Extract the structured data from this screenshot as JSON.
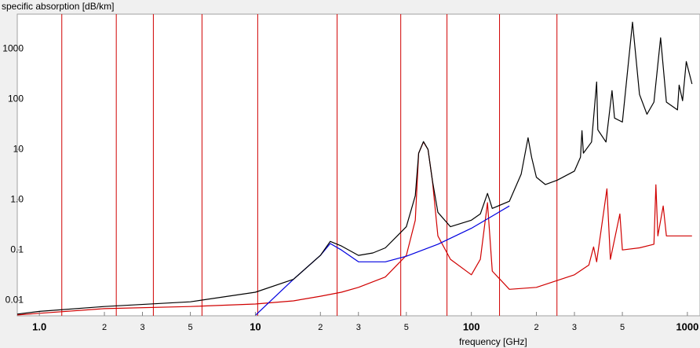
{
  "chart_data": {
    "type": "line",
    "y_label": "specific absorption [dB/km]",
    "x_label": "frequency [GHz]",
    "log_x": true,
    "log_y": true,
    "xlim": [
      0.79,
      1144
    ],
    "ylim": [
      0.0049,
      4900
    ],
    "xticks": [
      {
        "value": 1,
        "label": "1.0"
      },
      2,
      3,
      5,
      10,
      {
        "value": 20,
        "label": "2"
      },
      {
        "value": 30,
        "label": "3"
      },
      {
        "value": 50,
        "label": "5"
      },
      100,
      {
        "value": 200,
        "label": "2"
      },
      {
        "value": 300,
        "label": "3"
      },
      {
        "value": 500,
        "label": "5"
      },
      1000
    ],
    "yticks": [
      0.01,
      0.1,
      {
        "value": 1,
        "label": "1.0"
      },
      10,
      100,
      1000
    ],
    "vlines": [
      1.27,
      2.27,
      3.37,
      5.66,
      10.25,
      23.9,
      47.1,
      77.1,
      135,
      249
    ],
    "vline_color": "#d00000",
    "series": [
      {
        "color": "#000000",
        "x": [
          0.79,
          1,
          2,
          5,
          10,
          15,
          20,
          22.2,
          25,
          30,
          35,
          40,
          50,
          55,
          57,
          60,
          63,
          66,
          70,
          80,
          100,
          110,
          118.75,
          125,
          150,
          170,
          183,
          190,
          200,
          220,
          250,
          300,
          320,
          325,
          330,
          360,
          380,
          385,
          420,
          448,
          460,
          500,
          557,
          600,
          650,
          700,
          752,
          800,
          900,
          916,
          950,
          988,
          1050
        ],
        "values": [
          0.0053,
          0.006,
          0.0075,
          0.0093,
          0.0144,
          0.026,
          0.078,
          0.148,
          0.12,
          0.078,
          0.087,
          0.11,
          0.29,
          1.2,
          8.4,
          14.3,
          10,
          2.4,
          0.56,
          0.29,
          0.39,
          0.52,
          1.33,
          0.67,
          0.93,
          3.2,
          17,
          7,
          2.8,
          2.0,
          2.45,
          3.7,
          7,
          23.6,
          8.4,
          14,
          220,
          24.6,
          14,
          148,
          42,
          35,
          3400,
          124,
          50,
          87,
          1660,
          87,
          61,
          190,
          93,
          560,
          200
        ]
      },
      {
        "color": "#0000e0",
        "x": [
          10,
          15,
          20,
          22.2,
          25,
          30,
          40,
          50,
          70,
          100,
          150
        ],
        "values": [
          0.005,
          0.026,
          0.078,
          0.134,
          0.1,
          0.058,
          0.058,
          0.075,
          0.13,
          0.27,
          0.75
        ]
      },
      {
        "color": "#d00000",
        "x": [
          0.79,
          1,
          2,
          5,
          10,
          15,
          20,
          25,
          30,
          40,
          50,
          55,
          57,
          60,
          63,
          66,
          70,
          80,
          100,
          110,
          118.75,
          125,
          150,
          200,
          300,
          350,
          368,
          380,
          424,
          440,
          487,
          500,
          600,
          700,
          715,
          730,
          773,
          800,
          900,
          1050
        ],
        "values": [
          0.0051,
          0.0055,
          0.0068,
          0.0075,
          0.0084,
          0.0097,
          0.012,
          0.0144,
          0.018,
          0.029,
          0.078,
          0.39,
          8.4,
          14,
          10,
          2.4,
          0.19,
          0.065,
          0.032,
          0.065,
          0.87,
          0.038,
          0.0165,
          0.018,
          0.032,
          0.05,
          0.115,
          0.058,
          1.65,
          0.065,
          0.52,
          0.1,
          0.11,
          0.13,
          1.98,
          0.19,
          0.75,
          0.19,
          0.19,
          0.19
        ]
      }
    ]
  }
}
